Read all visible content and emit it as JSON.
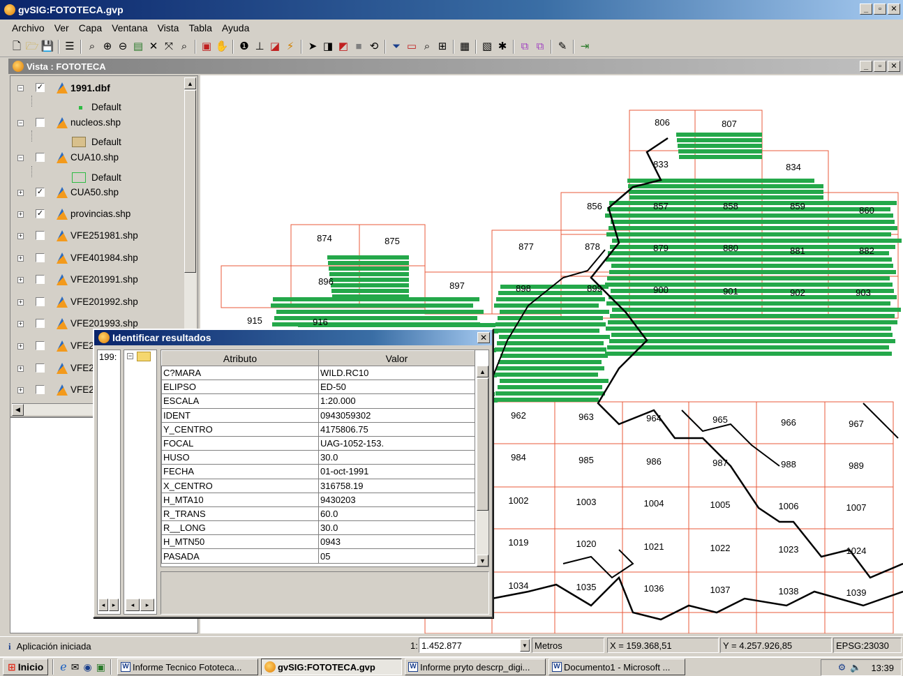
{
  "window": {
    "title": "gvSIG:FOTOTECA.gvp"
  },
  "menus": [
    "Archivo",
    "Ver",
    "Capa",
    "Ventana",
    "Vista",
    "Tabla",
    "Ayuda"
  ],
  "view": {
    "title": "Vista : FOTOTECA"
  },
  "toc": {
    "layers": [
      {
        "name": "1991.dbf",
        "checked": true,
        "bold": true,
        "legend": "Default",
        "legend_type": "point"
      },
      {
        "name": "nucleos.shp",
        "checked": false,
        "legend": "Default",
        "legend_type": "fill"
      },
      {
        "name": "CUA10.shp",
        "checked": false,
        "legend": "Default",
        "legend_type": "empty"
      },
      {
        "name": "CUA50.shp",
        "checked": true
      },
      {
        "name": "provincias.shp",
        "checked": true
      },
      {
        "name": "VFE251981.shp",
        "checked": false
      },
      {
        "name": "VFE401984.shp",
        "checked": false
      },
      {
        "name": "VFE201991.shp",
        "checked": false
      },
      {
        "name": "VFE201992.shp",
        "checked": false
      },
      {
        "name": "VFE201993.shp",
        "checked": false
      },
      {
        "name": "VFE2",
        "checked": false
      },
      {
        "name": "VFE2",
        "checked": false
      },
      {
        "name": "VFE2",
        "checked": false
      }
    ]
  },
  "map": {
    "grid_color": "#e8593a",
    "strip_color": "#24a84a",
    "sheets": [
      "806",
      "807",
      "833",
      "834",
      "856",
      "857",
      "858",
      "859",
      "860",
      "874",
      "875",
      "877",
      "878",
      "879",
      "880",
      "881",
      "882",
      "896",
      "897",
      "898",
      "899",
      "900",
      "901",
      "902",
      "903",
      "915",
      "916",
      "962",
      "963",
      "964",
      "965",
      "966",
      "967",
      "984",
      "985",
      "986",
      "987",
      "988",
      "989",
      "1002",
      "1003",
      "1004",
      "1005",
      "1006",
      "1007",
      "1019",
      "1020",
      "1021",
      "1022",
      "1023",
      "1024",
      "1034",
      "1035",
      "1036",
      "1037",
      "1038",
      "1039"
    ]
  },
  "dialog": {
    "title": "Identificar resultados",
    "list_item": "199:",
    "headers": {
      "attr": "Atributo",
      "value": "Valor"
    },
    "rows": [
      {
        "attr": "C?MARA",
        "value": "WILD.RC10"
      },
      {
        "attr": "ELIPSO",
        "value": "ED-50"
      },
      {
        "attr": "ESCALA",
        "value": "1:20.000"
      },
      {
        "attr": "IDENT",
        "value": "0943059302"
      },
      {
        "attr": "Y_CENTRO",
        "value": "4175806.75"
      },
      {
        "attr": "FOCAL",
        "value": "UAG-1052-153."
      },
      {
        "attr": "HUSO",
        "value": "30.0"
      },
      {
        "attr": "FECHA",
        "value": "01-oct-1991"
      },
      {
        "attr": "X_CENTRO",
        "value": "316758.19"
      },
      {
        "attr": "H_MTA10",
        "value": "9430203"
      },
      {
        "attr": "R_TRANS",
        "value": "60.0"
      },
      {
        "attr": "R__LONG",
        "value": "30.0"
      },
      {
        "attr": "H_MTN50",
        "value": "0943"
      },
      {
        "attr": "PASADA",
        "value": "05"
      }
    ]
  },
  "status": {
    "message": "Aplicación iniciada",
    "scale_prefix": "1:",
    "scale": "1.452.877",
    "units": "Metros",
    "x": "X = 159.368,51",
    "y": "Y = 4.257.926,85",
    "epsg": "EPSG:23030"
  },
  "taskbar": {
    "start": "Inicio",
    "tasks": [
      {
        "label": "Informe Tecnico Fototeca...",
        "type": "word"
      },
      {
        "label": "gvSIG:FOTOTECA.gvp",
        "type": "gvsig",
        "active": true
      },
      {
        "label": "Informe pryto descrp_digi...",
        "type": "word"
      },
      {
        "label": "Documento1 - Microsoft ...",
        "type": "word"
      }
    ],
    "clock": "13:39"
  }
}
